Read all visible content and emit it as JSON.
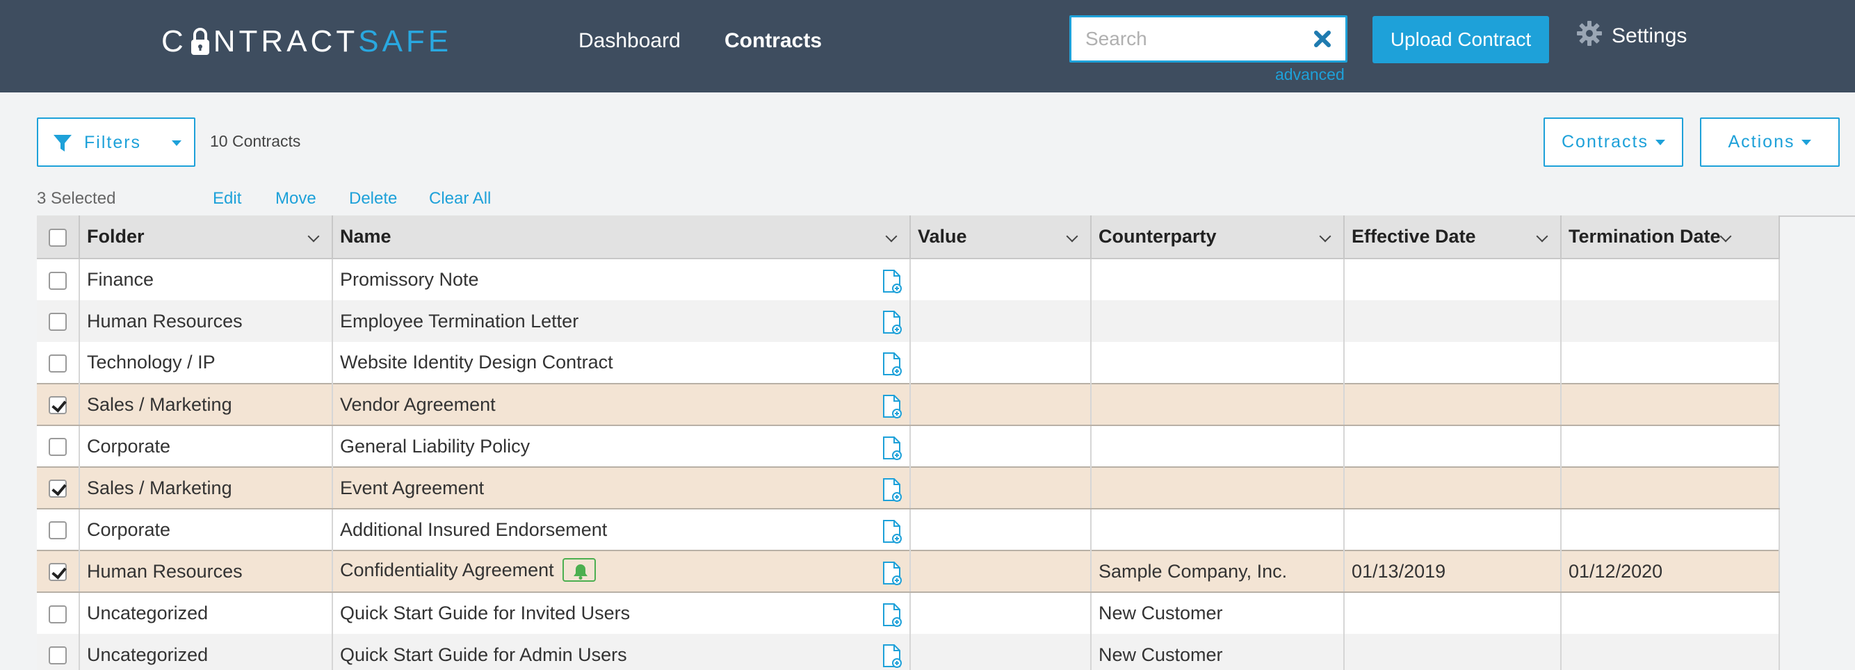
{
  "header": {
    "logo_part1": "C",
    "logo_part2": "NTRACT",
    "logo_part3": "SAFE",
    "nav": [
      {
        "label": "Dashboard",
        "active": false
      },
      {
        "label": "Contracts",
        "active": true
      }
    ],
    "search": {
      "placeholder": "Search",
      "value": "",
      "advanced_label": "advanced"
    },
    "upload_label": "Upload Contract",
    "settings_label": "Settings"
  },
  "colors": {
    "header_bg": "#3e4d5f",
    "accent": "#1ea1d9",
    "selected_row": "#f3e4d4",
    "notify_green": "#4caf50"
  },
  "toolbar": {
    "filters_label": "Filters",
    "contract_count": "10 Contracts",
    "contracts_dropdown": "Contracts",
    "actions_dropdown": "Actions"
  },
  "selection": {
    "count_label": "3 Selected",
    "actions": [
      "Edit",
      "Move",
      "Delete",
      "Clear All"
    ]
  },
  "table": {
    "columns": [
      "Folder",
      "Name",
      "Value",
      "Counterparty",
      "Effective Date",
      "Termination Date"
    ],
    "rows": [
      {
        "checked": false,
        "folder": "Finance",
        "name": "Promissory Note",
        "value": "",
        "counterparty": "",
        "effective": "",
        "termination": "",
        "alert": false
      },
      {
        "checked": false,
        "folder": "Human Resources",
        "name": "Employee Termination Letter",
        "value": "",
        "counterparty": "",
        "effective": "",
        "termination": "",
        "alert": false
      },
      {
        "checked": false,
        "folder": "Technology / IP",
        "name": "Website Identity Design Contract",
        "value": "",
        "counterparty": "",
        "effective": "",
        "termination": "",
        "alert": false
      },
      {
        "checked": true,
        "folder": "Sales / Marketing",
        "name": "Vendor Agreement",
        "value": "",
        "counterparty": "",
        "effective": "",
        "termination": "",
        "alert": false
      },
      {
        "checked": false,
        "folder": "Corporate",
        "name": "General Liability Policy",
        "value": "",
        "counterparty": "",
        "effective": "",
        "termination": "",
        "alert": false
      },
      {
        "checked": true,
        "folder": "Sales / Marketing",
        "name": "Event Agreement",
        "value": "",
        "counterparty": "",
        "effective": "",
        "termination": "",
        "alert": false
      },
      {
        "checked": false,
        "folder": "Corporate",
        "name": "Additional Insured Endorsement",
        "value": "",
        "counterparty": "",
        "effective": "",
        "termination": "",
        "alert": false
      },
      {
        "checked": true,
        "folder": "Human Resources",
        "name": "Confidentiality Agreement",
        "value": "",
        "counterparty": "Sample Company, Inc.",
        "effective": "01/13/2019",
        "termination": "01/12/2020",
        "alert": true
      },
      {
        "checked": false,
        "folder": "Uncategorized",
        "name": "Quick Start Guide for Invited Users",
        "value": "",
        "counterparty": "New Customer",
        "effective": "",
        "termination": "",
        "alert": false
      },
      {
        "checked": false,
        "folder": "Uncategorized",
        "name": "Quick Start Guide for Admin Users",
        "value": "",
        "counterparty": "New Customer",
        "effective": "",
        "termination": "",
        "alert": false
      }
    ]
  }
}
